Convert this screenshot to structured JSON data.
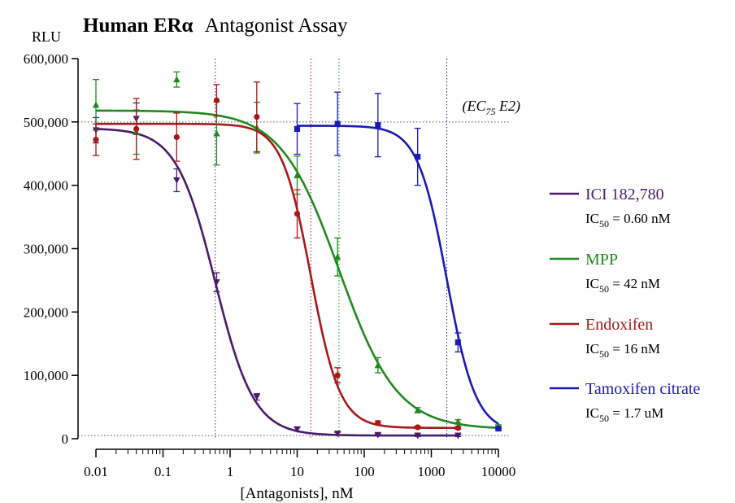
{
  "chart_data": {
    "type": "scatter",
    "title": {
      "bold": "Human ERα",
      "rest": "Antagonist Assay"
    },
    "ylabel": "RLU",
    "xlabel": "[Antagonists], nM",
    "x_scale": "log",
    "xlim": [
      0.01,
      10000
    ],
    "ylim": [
      0,
      600000
    ],
    "x_ticks": [
      {
        "value": 0.01,
        "label": "0.01"
      },
      {
        "value": 0.1,
        "label": "0.1"
      },
      {
        "value": 1,
        "label": "1"
      },
      {
        "value": 10,
        "label": "10"
      },
      {
        "value": 100,
        "label": "100"
      },
      {
        "value": 1000,
        "label": "1000"
      },
      {
        "value": 10000,
        "label": "10000"
      }
    ],
    "y_ticks": [
      {
        "value": 0,
        "label": "0"
      },
      {
        "value": 100000,
        "label": "100,000"
      },
      {
        "value": 200000,
        "label": "200,000"
      },
      {
        "value": 300000,
        "label": "300,000"
      },
      {
        "value": 400000,
        "label": "400,000"
      },
      {
        "value": 500000,
        "label": "500,000"
      },
      {
        "value": 600000,
        "label": "600,000"
      }
    ],
    "reference_lines": {
      "ec75": {
        "value": 500000,
        "label_main": "(EC",
        "label_sub": "75",
        "label_rest": " E2)"
      },
      "baseline": {
        "value": 5000
      }
    },
    "legend_position": "right",
    "series": [
      {
        "name": "ICI 182,780",
        "ic50_label": "0.60 nM",
        "ic50": 0.6,
        "color": "#4b1a6b",
        "marker": "triangle-down",
        "fit": {
          "top": 490000,
          "bottom": 5000,
          "hill": 1.5
        },
        "x": [
          0.01,
          0.04,
          0.16,
          0.63,
          2.5,
          10,
          40,
          160,
          625,
          2500
        ],
        "y": [
          487000,
          505000,
          408000,
          247000,
          66000,
          15000,
          8000,
          6000,
          5000,
          5000
        ],
        "err": [
          20000,
          25000,
          18000,
          15000,
          5000,
          3000,
          2000,
          1500,
          1500,
          1500
        ]
      },
      {
        "name": "MPP",
        "ic50_label": "42 nM",
        "ic50": 42,
        "color": "#1e8a1e",
        "marker": "triangle-up",
        "fit": {
          "top": 518000,
          "bottom": 15000,
          "hill": 1.0
        },
        "x": [
          0.01,
          0.04,
          0.16,
          0.63,
          2.5,
          10,
          40,
          160,
          625,
          2500,
          10000
        ],
        "y": [
          527000,
          484000,
          567000,
          482000,
          491000,
          416000,
          287000,
          116000,
          45000,
          27000,
          20000
        ],
        "err": [
          40000,
          35000,
          12000,
          50000,
          40000,
          30000,
          30000,
          12000,
          4000,
          3000,
          2000
        ]
      },
      {
        "name": "Endoxifen",
        "ic50_label": "16 nM",
        "ic50": 16,
        "color": "#a81818",
        "marker": "circle",
        "fit": {
          "top": 497000,
          "bottom": 17000,
          "hill": 2.0
        },
        "x": [
          0.01,
          0.04,
          0.16,
          0.63,
          2.5,
          10,
          40,
          160,
          625,
          2500
        ],
        "y": [
          472000,
          489000,
          476000,
          534000,
          508000,
          355000,
          100000,
          25000,
          18000,
          17000
        ],
        "err": [
          25000,
          48000,
          38000,
          25000,
          55000,
          38000,
          12000,
          3000,
          2000,
          2000
        ]
      },
      {
        "name": "Tamoxifen citrate",
        "ic50_label": "1.7 uM",
        "ic50": 1700,
        "color": "#1a1ab4",
        "marker": "square",
        "fit": {
          "top": 494000,
          "bottom": 10000,
          "hill": 2.0
        },
        "x": [
          10,
          40,
          160,
          625,
          2500,
          10000
        ],
        "y": [
          489000,
          497000,
          495000,
          445000,
          152000,
          16000
        ],
        "err": [
          40000,
          50000,
          50000,
          45000,
          15000,
          2000
        ]
      }
    ]
  }
}
